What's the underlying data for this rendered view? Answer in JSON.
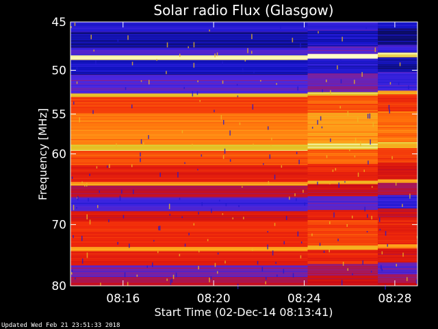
{
  "chart_data": {
    "type": "heatmap",
    "title": "Solar radio Flux (Glasgow)",
    "xlabel": "Start Time (02-Dec-14 08:13:41)",
    "ylabel": "Frequency [MHz]",
    "x_range_minutes": [
      "08:13:41",
      "08:29:00"
    ],
    "y_range_mhz": [
      45,
      80
    ],
    "y_scale": "log",
    "x_ticks": [
      "08:16",
      "08:20",
      "08:24",
      "08:28"
    ],
    "x_tick_values_min": [
      16,
      20,
      24,
      28
    ],
    "y_ticks": [
      "45",
      "50",
      "55",
      "60",
      "70",
      "80"
    ],
    "y_tick_values": [
      45,
      50,
      55,
      60,
      70,
      80
    ],
    "segments_time_min": [
      [
        13.68,
        24.15
      ],
      [
        24.15,
        27.25
      ],
      [
        27.25,
        29.0
      ]
    ],
    "bands": [
      {
        "f0": 45.0,
        "f1": 46.0,
        "level": 0.15
      },
      {
        "f0": 46.0,
        "f1": 47.6,
        "level": 0.08
      },
      {
        "f0": 47.6,
        "f1": 48.4,
        "level": 0.22
      },
      {
        "f0": 48.4,
        "f1": 48.9,
        "level": 0.98
      },
      {
        "f0": 48.9,
        "f1": 50.5,
        "level": 0.12
      },
      {
        "f0": 50.5,
        "f1": 52.6,
        "level": 0.25
      },
      {
        "f0": 52.6,
        "f1": 53.0,
        "level": 0.85
      },
      {
        "f0": 53.0,
        "f1": 55.0,
        "level": 0.6
      },
      {
        "f0": 55.0,
        "f1": 58.8,
        "level": 0.72
      },
      {
        "f0": 58.8,
        "f1": 59.6,
        "level": 0.88
      },
      {
        "f0": 59.6,
        "f1": 61.5,
        "level": 0.62
      },
      {
        "f0": 61.5,
        "f1": 63.8,
        "level": 0.5
      },
      {
        "f0": 63.8,
        "f1": 64.3,
        "level": 0.8
      },
      {
        "f0": 64.3,
        "f1": 66.0,
        "level": 0.4
      },
      {
        "f0": 66.0,
        "f1": 68.0,
        "level": 0.22
      },
      {
        "f0": 68.0,
        "f1": 69.5,
        "level": 0.48
      },
      {
        "f0": 69.5,
        "f1": 73.5,
        "level": 0.55
      },
      {
        "f0": 73.5,
        "f1": 74.2,
        "level": 0.8
      },
      {
        "f0": 74.2,
        "f1": 76.5,
        "level": 0.5
      },
      {
        "f0": 76.5,
        "f1": 78.5,
        "level": 0.3
      },
      {
        "f0": 78.5,
        "f1": 80.0,
        "level": 0.4
      }
    ]
  },
  "footer": {
    "updated": "Updated Wed Feb 21 23:51:33 2018"
  }
}
